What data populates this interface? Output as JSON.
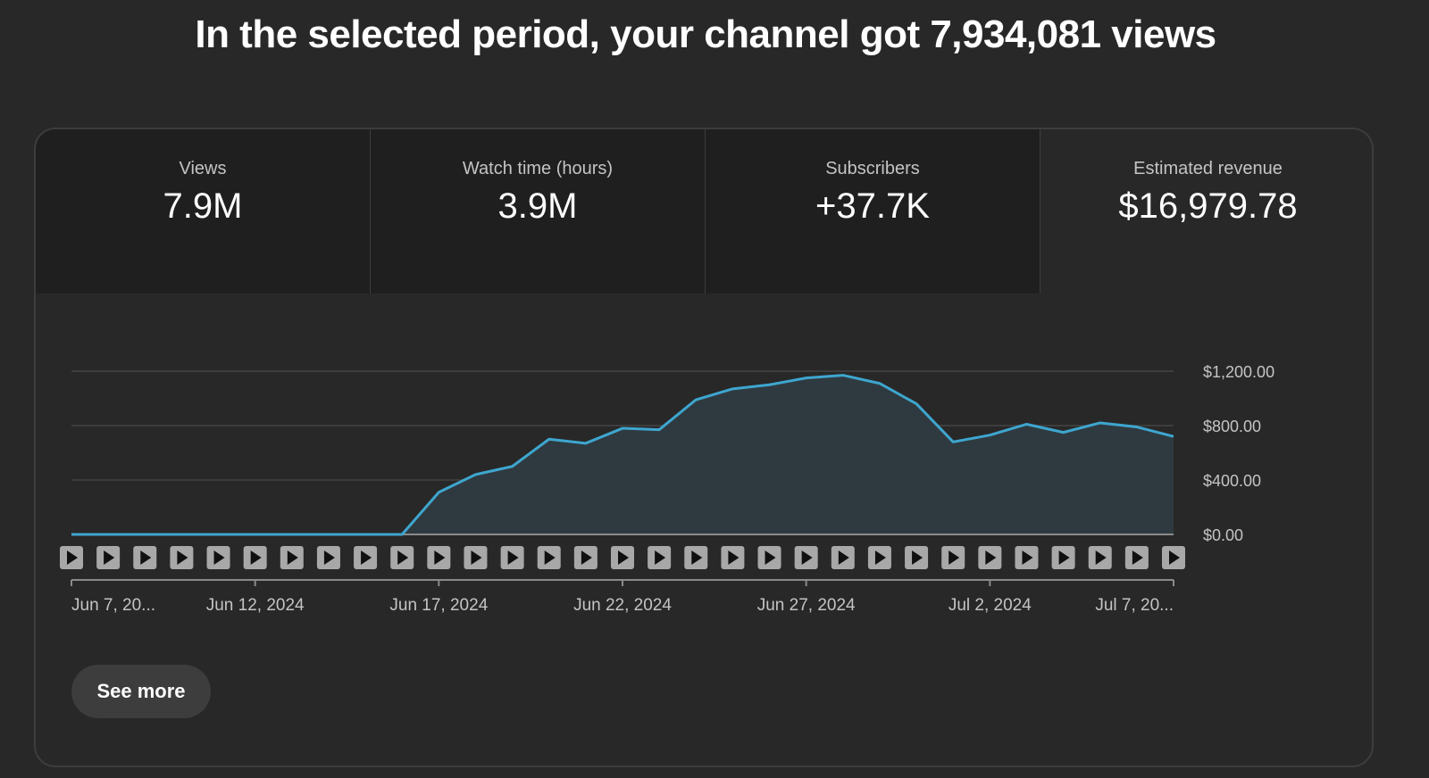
{
  "headline": "In the selected period, your channel got 7,934,081 views",
  "metrics": [
    {
      "label": "Views",
      "value": "7.9M"
    },
    {
      "label": "Watch time (hours)",
      "value": "3.9M"
    },
    {
      "label": "Subscribers",
      "value": "+37.7K"
    },
    {
      "label": "Estimated revenue",
      "value": "$16,979.78"
    }
  ],
  "active_metric": "Estimated revenue",
  "see_more_label": "See more",
  "colors": {
    "line": "#3ea6cf",
    "area": "#2f3a40",
    "background": "#282828"
  },
  "chart_data": {
    "type": "area",
    "x": [
      "Jun 7, 2024",
      "Jun 8, 2024",
      "Jun 9, 2024",
      "Jun 10, 2024",
      "Jun 11, 2024",
      "Jun 12, 2024",
      "Jun 13, 2024",
      "Jun 14, 2024",
      "Jun 15, 2024",
      "Jun 16, 2024",
      "Jun 17, 2024",
      "Jun 18, 2024",
      "Jun 19, 2024",
      "Jun 20, 2024",
      "Jun 21, 2024",
      "Jun 22, 2024",
      "Jun 23, 2024",
      "Jun 24, 2024",
      "Jun 25, 2024",
      "Jun 26, 2024",
      "Jun 27, 2024",
      "Jun 28, 2024",
      "Jun 29, 2024",
      "Jun 30, 2024",
      "Jul 1, 2024",
      "Jul 2, 2024",
      "Jul 3, 2024",
      "Jul 4, 2024",
      "Jul 5, 2024",
      "Jul 6, 2024",
      "Jul 7, 2024"
    ],
    "series": [
      {
        "values": [
          0,
          0,
          0,
          0,
          0,
          0,
          0,
          0,
          0,
          0,
          310,
          440,
          500,
          700,
          670,
          780,
          770,
          990,
          1070,
          1100,
          1150,
          1170,
          1110,
          960,
          680,
          730,
          810,
          750,
          820,
          790,
          720
        ]
      }
    ],
    "x_tick_labels": [
      "Jun 7, 20...",
      "Jun 12, 2024",
      "Jun 17, 2024",
      "Jun 22, 2024",
      "Jun 27, 2024",
      "Jul 2, 2024",
      "Jul 7, 20..."
    ],
    "y_tick_labels": [
      "$0.00",
      "$400.00",
      "$800.00",
      "$1,200.00"
    ],
    "y_ticks": [
      0,
      400,
      800,
      1200
    ],
    "ylim": [
      0,
      1200
    ],
    "grid": true,
    "y_axis_side": "right",
    "markers": "play icon under every day"
  }
}
